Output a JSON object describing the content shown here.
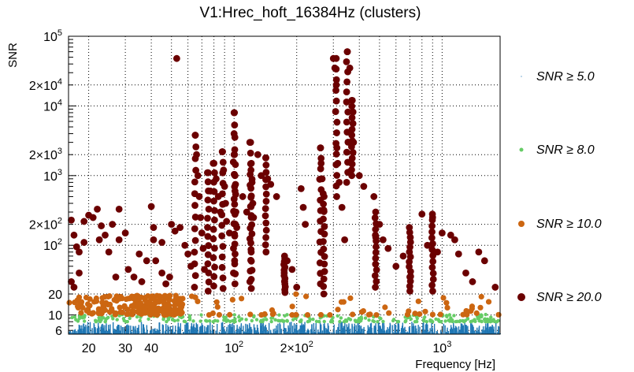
{
  "chart_data": {
    "type": "scatter",
    "title": "V1:Hrec_hoft_16384Hz (clusters)",
    "xlabel": "Frequency [Hz]",
    "ylabel": "SNR",
    "xscale": "log",
    "yscale": "log",
    "xlim": [
      16,
      1900
    ],
    "ylim": [
      5.3,
      100000
    ],
    "grid": true,
    "legend_position": "right",
    "x_tick_labels": [
      {
        "value": 20,
        "label": "20"
      },
      {
        "value": 30,
        "label": "30"
      },
      {
        "value": 40,
        "label": "40"
      },
      {
        "value": 100,
        "label": "10",
        "sup": "2"
      },
      {
        "value": 200,
        "label": "2×10",
        "sup": "2"
      },
      {
        "value": 1000,
        "label": "10",
        "sup": "3"
      }
    ],
    "y_tick_labels": [
      {
        "value": 6,
        "label": "6"
      },
      {
        "value": 10,
        "label": "10"
      },
      {
        "value": 20,
        "label": "20"
      },
      {
        "value": 100,
        "label": "10",
        "sup": "2"
      },
      {
        "value": 200,
        "label": "2×10",
        "sup": "2"
      },
      {
        "value": 1000,
        "label": "10",
        "sup": "3"
      },
      {
        "value": 2000,
        "label": "2×10",
        "sup": "3"
      },
      {
        "value": 10000,
        "label": "10",
        "sup": "4"
      },
      {
        "value": 20000,
        "label": "2×10",
        "sup": "4"
      },
      {
        "value": 100000,
        "label": "10",
        "sup": "5"
      }
    ],
    "series": [
      {
        "name": "SNR ≥ 5.0",
        "threshold": 5.0,
        "color": "#1f77b4",
        "marker": "dot"
      },
      {
        "name": "SNR ≥ 8.0",
        "threshold": 8.0,
        "color": "#66cc66",
        "marker": "small-circle"
      },
      {
        "name": "SNR ≥ 10.0",
        "threshold": 10.0,
        "color": "#cc6611",
        "marker": "medium-circle"
      },
      {
        "name": "SNR ≥ 20.0",
        "threshold": 20.0,
        "color": "#6b0000",
        "marker": "large-circle"
      }
    ],
    "high_snr_points": [
      [
        16.5,
        230
      ],
      [
        17,
        140
      ],
      [
        17.5,
        95
      ],
      [
        18,
        80
      ],
      [
        19,
        110
      ],
      [
        16.5,
        30
      ],
      [
        17,
        25
      ],
      [
        18,
        40
      ],
      [
        19,
        220
      ],
      [
        20,
        270
      ],
      [
        21,
        250
      ],
      [
        22,
        330
      ],
      [
        22.5,
        120
      ],
      [
        23,
        190
      ],
      [
        24,
        140
      ],
      [
        25,
        80
      ],
      [
        26,
        200
      ],
      [
        27,
        35
      ],
      [
        28,
        330
      ],
      [
        28,
        120
      ],
      [
        30,
        150
      ],
      [
        31,
        45
      ],
      [
        33,
        35
      ],
      [
        35,
        75
      ],
      [
        36,
        30
      ],
      [
        38,
        60
      ],
      [
        40,
        360
      ],
      [
        41,
        180
      ],
      [
        41,
        120
      ],
      [
        42,
        60
      ],
      [
        45,
        110
      ],
      [
        45,
        40
      ],
      [
        47,
        28
      ],
      [
        49,
        35
      ],
      [
        50,
        200
      ],
      [
        52,
        160
      ],
      [
        53,
        48000
      ],
      [
        55,
        180
      ],
      [
        58,
        100
      ],
      [
        60,
        75
      ],
      [
        62,
        50
      ],
      [
        65,
        3800
      ],
      [
        66,
        2000
      ],
      [
        67,
        1000
      ],
      [
        68,
        500
      ],
      [
        69,
        250
      ],
      [
        70,
        150
      ],
      [
        71,
        90
      ],
      [
        72,
        45
      ],
      [
        75,
        1100
      ],
      [
        77,
        600
      ],
      [
        80,
        1500
      ],
      [
        82,
        900
      ],
      [
        84,
        500
      ],
      [
        86,
        300
      ],
      [
        88,
        2200
      ],
      [
        89,
        1200
      ],
      [
        90,
        700
      ],
      [
        91,
        400
      ],
      [
        92,
        220
      ],
      [
        95,
        150
      ],
      [
        100,
        8000
      ],
      [
        100,
        4000
      ],
      [
        100,
        2000
      ],
      [
        101,
        1000
      ],
      [
        101,
        600
      ],
      [
        102,
        300
      ],
      [
        103,
        180
      ],
      [
        110,
        500
      ],
      [
        115,
        300
      ],
      [
        120,
        3000
      ],
      [
        121,
        1500
      ],
      [
        122,
        800
      ],
      [
        123,
        400
      ],
      [
        124,
        250
      ],
      [
        130,
        2000
      ],
      [
        135,
        1000
      ],
      [
        142,
        1800
      ],
      [
        145,
        900
      ],
      [
        150,
        750
      ],
      [
        160,
        500
      ],
      [
        175,
        30
      ],
      [
        180,
        60
      ],
      [
        190,
        45
      ],
      [
        200,
        25
      ],
      [
        210,
        650
      ],
      [
        215,
        350
      ],
      [
        220,
        200
      ],
      [
        260,
        2500
      ],
      [
        262,
        1500
      ],
      [
        265,
        900
      ],
      [
        268,
        550
      ],
      [
        270,
        320
      ],
      [
        300,
        48000
      ],
      [
        305,
        35000
      ],
      [
        310,
        20000
      ],
      [
        312,
        2500
      ],
      [
        315,
        1500
      ],
      [
        320,
        800
      ],
      [
        330,
        350
      ],
      [
        340,
        120
      ],
      [
        350,
        60000
      ],
      [
        360,
        35000
      ],
      [
        370,
        12000
      ],
      [
        375,
        3000
      ],
      [
        400,
        1000
      ],
      [
        420,
        700
      ],
      [
        470,
        500
      ],
      [
        480,
        130
      ],
      [
        500,
        200
      ],
      [
        520,
        120
      ],
      [
        550,
        90
      ],
      [
        600,
        50
      ],
      [
        650,
        70
      ],
      [
        700,
        35
      ],
      [
        800,
        280
      ],
      [
        850,
        100
      ],
      [
        900,
        250
      ],
      [
        950,
        80
      ],
      [
        1000,
        150
      ],
      [
        1100,
        140
      ],
      [
        1150,
        120
      ],
      [
        1200,
        75
      ],
      [
        1300,
        40
      ],
      [
        1400,
        30
      ],
      [
        1500,
        80
      ],
      [
        1600,
        60
      ],
      [
        1800,
        25
      ]
    ]
  }
}
